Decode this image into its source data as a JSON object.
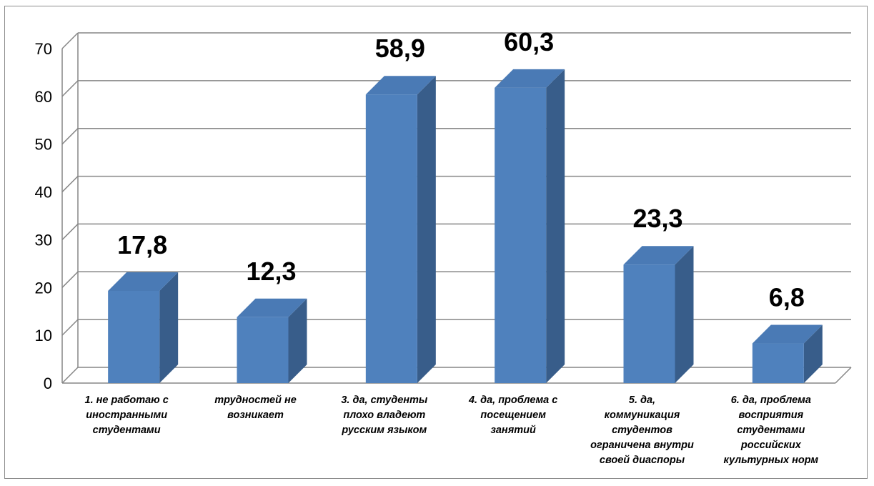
{
  "chart_data": {
    "type": "bar",
    "categories": [
      [
        "1. не работаю с",
        "иностранными",
        "студентами"
      ],
      [
        "трудностей не",
        "возникает"
      ],
      [
        "3. да, студенты",
        "плохо владеют",
        "русским языком"
      ],
      [
        "4. да, проблема с",
        "посещением",
        "занятий"
      ],
      [
        "5. да,",
        "коммуникация",
        "студентов",
        "ограничена внутри",
        "своей диаспоры"
      ],
      [
        "6. да, проблема",
        "восприятия",
        "студентами",
        "российских",
        "культурных норм"
      ]
    ],
    "values": [
      17.8,
      12.3,
      58.9,
      60.3,
      23.3,
      6.8
    ],
    "data_labels": [
      "17,8",
      "12,3",
      "58,9",
      "60,3",
      "23,3",
      "6,8"
    ],
    "title": "",
    "xlabel": "",
    "ylabel": "",
    "ylim": [
      0,
      70
    ],
    "yticks": [
      "0",
      "10",
      "20",
      "30",
      "40",
      "50",
      "60",
      "70"
    ],
    "grid": true,
    "legend": "none",
    "bar_color": "#4f81bd",
    "bar_side_color": "#385d8a",
    "bar_top_color": "#4a7ab5"
  }
}
